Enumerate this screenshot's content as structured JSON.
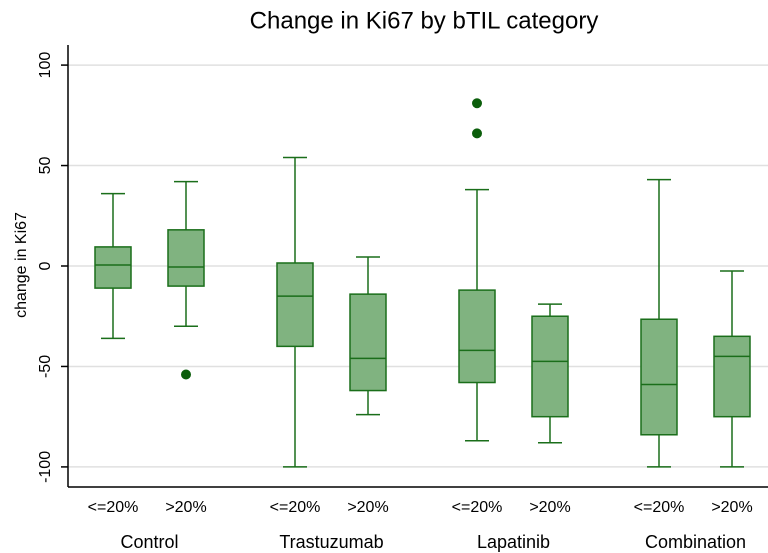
{
  "chart_data": {
    "type": "box",
    "title": "Change in Ki67 by bTIL category",
    "ylabel": "change in Ki67",
    "categories": [
      "<=20%",
      ">20%",
      "<=20%",
      ">20%",
      "<=20%",
      ">20%",
      "<=20%",
      ">20%"
    ],
    "groups": [
      "Control",
      "Trastuzumab",
      "Lapatinib",
      "Combination"
    ],
    "boxes": [
      {
        "whislo": -36,
        "q1": -11,
        "med": 0.5,
        "q3": 9.5,
        "whishi": 36,
        "fliers": []
      },
      {
        "whislo": -30,
        "q1": -10,
        "med": -0.5,
        "q3": 18,
        "whishi": 42,
        "fliers": [
          -54
        ]
      },
      {
        "whislo": -100,
        "q1": -40,
        "med": -15,
        "q3": 1.5,
        "whishi": 54,
        "fliers": []
      },
      {
        "whislo": -74,
        "q1": -62,
        "med": -46,
        "q3": -14,
        "whishi": 4.5,
        "fliers": []
      },
      {
        "whislo": -87,
        "q1": -58,
        "med": -42,
        "q3": -12,
        "whishi": 38,
        "fliers": [
          81,
          66
        ]
      },
      {
        "whislo": -88,
        "q1": -75,
        "med": -47.5,
        "q3": -25,
        "whishi": -19,
        "fliers": []
      },
      {
        "whislo": -100,
        "q1": -84,
        "med": -59,
        "q3": -26.5,
        "whishi": 43,
        "fliers": []
      },
      {
        "whislo": -100,
        "q1": -75,
        "med": -45,
        "q3": -35,
        "whishi": -2.5,
        "fliers": []
      }
    ],
    "box_color": "#80b380",
    "line_color": "#1a6e1a",
    "flier_color": "#0b5e0b",
    "ylim": [
      -110,
      110
    ],
    "yticks": [
      100,
      50,
      0,
      -50,
      -100
    ],
    "grid": true
  }
}
